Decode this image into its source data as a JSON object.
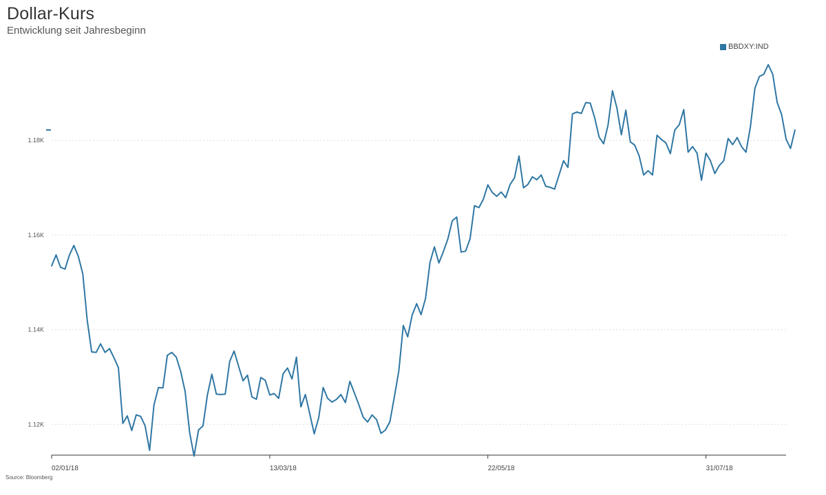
{
  "colors": {
    "line": "#2e76a3",
    "grid": "#dddddd",
    "axis": "#333333"
  },
  "source": "Source: Bloomberg",
  "chart_data": {
    "type": "line",
    "title": "Dollar-Kurs",
    "subtitle": "Entwicklung seit Jahresbeginn",
    "legend": {
      "entries": [
        "BBDXY:IND"
      ],
      "position": "top-right"
    },
    "grid": true,
    "ylim": [
      1.1135,
      1.1995
    ],
    "yticks": [
      1.12,
      1.14,
      1.16,
      1.18
    ],
    "ytick_labels": [
      "1.12K",
      "1.14K",
      "1.16K",
      "1.18K"
    ],
    "x_range": [
      0,
      165
    ],
    "xticks": [
      0,
      49,
      98,
      147
    ],
    "xtick_labels": [
      "02/01/18",
      "13/03/18",
      "22/05/18",
      "31/07/18"
    ],
    "series": [
      {
        "name": "BBDXY:IND",
        "values": [
          1.1535,
          1.1558,
          1.1532,
          1.1528,
          1.1558,
          1.1578,
          1.1555,
          1.1518,
          1.142,
          1.1353,
          1.1352,
          1.137,
          1.1352,
          1.136,
          1.1341,
          1.132,
          1.1202,
          1.1218,
          1.1187,
          1.122,
          1.1217,
          1.1197,
          1.1145,
          1.1241,
          1.1278,
          1.1277,
          1.1346,
          1.1352,
          1.1342,
          1.1312,
          1.1269,
          1.1183,
          1.1133,
          1.1188,
          1.1197,
          1.1262,
          1.1306,
          1.1264,
          1.1263,
          1.1264,
          1.1333,
          1.1355,
          1.1323,
          1.1292,
          1.1304,
          1.1258,
          1.1253,
          1.1299,
          1.1293,
          1.1262,
          1.1265,
          1.1255,
          1.1307,
          1.1319,
          1.1296,
          1.1342,
          1.1237,
          1.1263,
          1.1222,
          1.118,
          1.1214,
          1.1278,
          1.1255,
          1.1247,
          1.1253,
          1.1263,
          1.1246,
          1.1291,
          1.1267,
          1.1242,
          1.1215,
          1.1205,
          1.122,
          1.121,
          1.1181,
          1.1188,
          1.1206,
          1.1258,
          1.1313,
          1.1409,
          1.1385,
          1.1431,
          1.1455,
          1.1432,
          1.1466,
          1.1542,
          1.1575,
          1.1541,
          1.1565,
          1.1591,
          1.163,
          1.1638,
          1.1564,
          1.1566,
          1.1592,
          1.1662,
          1.1658,
          1.1676,
          1.1706,
          1.169,
          1.1682,
          1.1691,
          1.1679,
          1.1707,
          1.1721,
          1.1767,
          1.17,
          1.1707,
          1.1723,
          1.1717,
          1.1727,
          1.1703,
          1.1701,
          1.1697,
          1.1727,
          1.1757,
          1.1743,
          1.1856,
          1.186,
          1.1857,
          1.188,
          1.1879,
          1.1848,
          1.1807,
          1.1793,
          1.1832,
          1.1905,
          1.1868,
          1.1812,
          1.1864,
          1.1797,
          1.179,
          1.1767,
          1.1727,
          1.1736,
          1.1727,
          1.1811,
          1.1802,
          1.1795,
          1.1772,
          1.1822,
          1.1833,
          1.1865,
          1.1775,
          1.1787,
          1.1773,
          1.1716,
          1.1773,
          1.1757,
          1.173,
          1.1747,
          1.1757,
          1.1804,
          1.1791,
          1.1806,
          1.1787,
          1.1775,
          1.183,
          1.191,
          1.1935,
          1.194,
          1.196,
          1.194,
          1.188,
          1.1855,
          1.1803,
          1.1783,
          1.1822
        ]
      }
    ]
  }
}
